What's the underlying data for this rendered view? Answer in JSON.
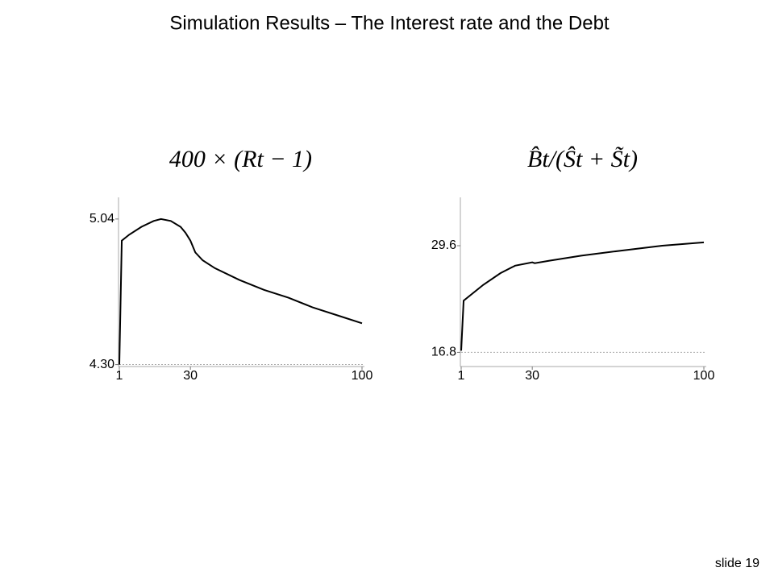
{
  "slide": {
    "title": "Simulation Results – The Interest rate and the Debt",
    "footer": "slide 19"
  },
  "chart_data": [
    {
      "type": "line",
      "title": "400 × (Rt − 1)",
      "x": [
        1,
        2,
        5,
        10,
        15,
        18,
        22,
        26,
        28,
        30,
        32,
        35,
        40,
        50,
        60,
        70,
        80,
        90,
        100
      ],
      "series": [
        {
          "color": "#000000",
          "values": [
            4.3,
            4.93,
            4.96,
            5.0,
            5.03,
            5.04,
            5.03,
            5.0,
            4.97,
            4.93,
            4.87,
            4.83,
            4.79,
            4.73,
            4.68,
            4.64,
            4.59,
            4.55,
            4.51
          ]
        }
      ],
      "reference_line": 4.3,
      "xlim": [
        1,
        100
      ],
      "xticks": [
        1,
        30,
        100
      ],
      "ylim": [
        4.29,
        5.15
      ],
      "yticks": [
        {
          "value": 4.3,
          "label": "4.30"
        },
        5.04
      ]
    },
    {
      "type": "line",
      "title": "B̂t/(Ŝt + S̃t)",
      "x": [
        1,
        2,
        10,
        17,
        23,
        30,
        31,
        37,
        50,
        66,
        83,
        100
      ],
      "series": [
        {
          "color": "#000000",
          "values": [
            17.0,
            23.0,
            24.9,
            26.3,
            27.2,
            27.6,
            27.5,
            27.8,
            28.4,
            29.0,
            29.6,
            30.0
          ]
        }
      ],
      "reference_line": 16.8,
      "xlim": [
        1,
        100
      ],
      "xticks": [
        1,
        30,
        100
      ],
      "ylim": [
        15.1,
        35.4
      ],
      "yticks": [
        16.8,
        29.6
      ]
    }
  ]
}
